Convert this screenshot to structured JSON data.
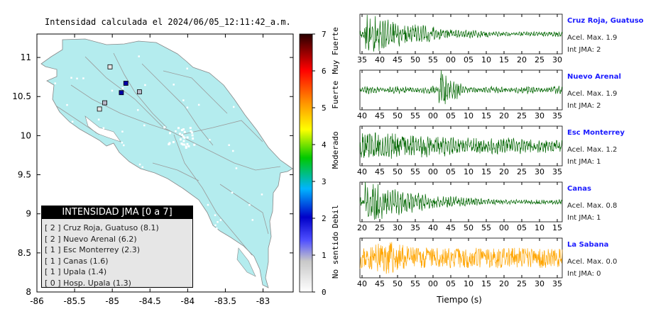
{
  "map": {
    "title": "Intensidad calculada el 2024/06/05_12:11:42_a.m.",
    "lon_ticks": [
      "-86",
      "-85.5",
      "-85",
      "-84.5",
      "-84",
      "-83.5",
      "-83"
    ],
    "lat_ticks": [
      "11",
      "10.5",
      "10",
      "9.5",
      "9",
      "8.5",
      "8"
    ],
    "legend_title": "INTENSIDAD JMA [0 a 7]",
    "legend_rows": [
      "[ 2 ]  Cruz Roja, Guatuso (8.1)",
      "[ 2 ]  Nuevo Arenal (6.2)",
      "[ 1 ]  Esc Monterrey (2.3)",
      "[ 1 ]  Canas (1.6)",
      "[ 1 ]  Upala (1.4)",
      "[ 0 ]  Hosp. Upala (1.3)"
    ],
    "colorbar_ticks": [
      "0",
      "1",
      "2",
      "3",
      "4",
      "5",
      "6",
      "7"
    ],
    "colorbar_labels": [
      "No sentido",
      "Debil",
      "Moderado",
      "Fuerte",
      "Muy Fuerte"
    ],
    "land_color": "#b4ecee",
    "stations": [
      {
        "lon": -85.03,
        "lat": 10.88,
        "intensity": 0,
        "color": "#e6e6e6"
      },
      {
        "lon": -84.82,
        "lat": 10.67,
        "intensity": 2,
        "color": "#0000a8"
      },
      {
        "lon": -84.88,
        "lat": 10.55,
        "intensity": 2,
        "color": "#0000a8"
      },
      {
        "lon": -84.64,
        "lat": 10.56,
        "intensity": 1,
        "color": "#b8b8c8"
      },
      {
        "lon": -85.1,
        "lat": 10.42,
        "intensity": 1,
        "color": "#b8b8c8"
      },
      {
        "lon": -85.17,
        "lat": 10.34,
        "intensity": 1,
        "color": "#e6e6e6"
      }
    ]
  },
  "traces": [
    {
      "name": "Cruz Roja, Guatuso",
      "acc": "Acel. Max. 1.9",
      "jma": "Int JMA: 2",
      "color": "#006600",
      "ticks": [
        "35",
        "40",
        "45",
        "50",
        "55",
        "00",
        "05",
        "10",
        "15",
        "20",
        "25",
        "30"
      ],
      "seed": 3,
      "shape": "early"
    },
    {
      "name": "Nuevo Arenal",
      "acc": "Acel. Max. 1.9",
      "jma": "Int JMA: 2",
      "color": "#006600",
      "ticks": [
        "40",
        "45",
        "50",
        "55",
        "00",
        "05",
        "10",
        "15",
        "20",
        "25",
        "30",
        "35"
      ],
      "seed": 7,
      "shape": "mid"
    },
    {
      "name": "Esc Monterrey",
      "acc": "Acel. Max. 1.2",
      "jma": "Int JMA: 1",
      "color": "#006600",
      "ticks": [
        "40",
        "45",
        "50",
        "55",
        "00",
        "05",
        "10",
        "15",
        "20",
        "25",
        "30",
        "35"
      ],
      "seed": 11,
      "shape": "steady"
    },
    {
      "name": "Canas",
      "acc": "Acel. Max. 0.8",
      "jma": "Int JMA: 1",
      "color": "#006600",
      "ticks": [
        "20",
        "25",
        "30",
        "35",
        "40",
        "45",
        "50",
        "55",
        "00",
        "05",
        "10",
        "15"
      ],
      "seed": 17,
      "shape": "early"
    },
    {
      "name": "La Sabana",
      "acc": "Acel. Max. 0.0",
      "jma": "Int JMA: 0",
      "color": "#ffa500",
      "ticks": [
        "40",
        "45",
        "50",
        "55",
        "00",
        "05",
        "10",
        "15",
        "20",
        "25",
        "30",
        "35"
      ],
      "seed": 23,
      "shape": "noise"
    }
  ],
  "xlabel": "Tiempo (s)"
}
